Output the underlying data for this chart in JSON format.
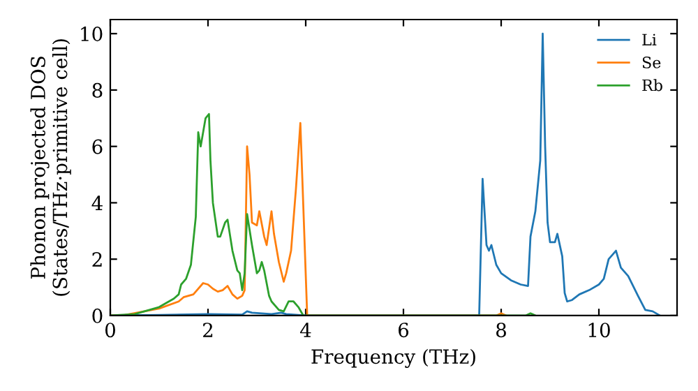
{
  "chart_data": {
    "type": "line",
    "xlabel": "Frequency (THz)",
    "ylabel": "Phonon projected DOS\n(States/THz·primitive cell)",
    "xlim": [
      0,
      11.6
    ],
    "ylim": [
      0,
      10.5
    ],
    "xticks": [
      0,
      2,
      4,
      6,
      8,
      10
    ],
    "yticks": [
      0,
      2,
      4,
      6,
      8,
      10
    ],
    "grid": false,
    "legend": "top right",
    "marker": "none",
    "line_style": "solid",
    "series": [
      {
        "name": "Li",
        "color": "#1f77b4",
        "x": [
          0,
          1.0,
          2.0,
          2.7,
          2.8,
          2.9,
          3.3,
          3.5,
          3.6,
          4.0,
          7.55,
          7.62,
          7.7,
          7.75,
          7.8,
          7.9,
          8.0,
          8.2,
          8.4,
          8.55,
          8.6,
          8.7,
          8.8,
          8.85,
          8.9,
          8.95,
          9.0,
          9.1,
          9.15,
          9.25,
          9.3,
          9.35,
          9.45,
          9.6,
          9.8,
          10.0,
          10.1,
          10.2,
          10.35,
          10.45,
          10.6,
          10.8,
          10.95,
          11.1,
          11.25
        ],
        "values": [
          0,
          0.02,
          0.05,
          0.03,
          0.15,
          0.1,
          0.05,
          0.1,
          0.05,
          0,
          0,
          4.85,
          2.5,
          2.3,
          2.5,
          1.8,
          1.5,
          1.25,
          1.1,
          1.05,
          2.8,
          3.7,
          5.5,
          10.0,
          6.0,
          3.3,
          2.6,
          2.6,
          2.9,
          2.1,
          0.8,
          0.5,
          0.55,
          0.75,
          0.9,
          1.1,
          1.3,
          2.0,
          2.3,
          1.7,
          1.4,
          0.7,
          0.2,
          0.15,
          0
        ]
      },
      {
        "name": "Se",
        "color": "#ff7f0e",
        "x": [
          0,
          0.3,
          1.0,
          1.4,
          1.5,
          1.7,
          1.9,
          2.0,
          2.1,
          2.2,
          2.3,
          2.4,
          2.5,
          2.6,
          2.7,
          2.75,
          2.8,
          2.85,
          2.9,
          3.0,
          3.05,
          3.15,
          3.2,
          3.3,
          3.35,
          3.45,
          3.55,
          3.6,
          3.7,
          3.75,
          3.8,
          3.89,
          4.03,
          7.9,
          8.0,
          8.1
        ],
        "values": [
          0,
          0.02,
          0.25,
          0.5,
          0.65,
          0.75,
          1.15,
          1.1,
          0.95,
          0.85,
          0.9,
          1.05,
          0.75,
          0.6,
          0.7,
          0.9,
          6.0,
          5.0,
          3.3,
          3.2,
          3.7,
          2.8,
          2.5,
          3.7,
          2.9,
          1.9,
          1.2,
          1.5,
          2.3,
          3.4,
          4.5,
          6.83,
          0,
          0,
          0.08,
          0
        ]
      },
      {
        "name": "Rb",
        "color": "#2ca02c",
        "x": [
          0,
          0.5,
          1.0,
          1.3,
          1.4,
          1.45,
          1.55,
          1.65,
          1.75,
          1.8,
          1.85,
          1.9,
          1.95,
          2.02,
          2.05,
          2.1,
          2.2,
          2.25,
          2.35,
          2.4,
          2.5,
          2.6,
          2.65,
          2.7,
          2.75,
          2.8,
          2.9,
          3.0,
          3.05,
          3.1,
          3.15,
          3.25,
          3.3,
          3.45,
          3.55,
          3.65,
          3.75,
          3.85,
          3.95,
          4.0,
          8.5,
          8.6,
          8.7
        ],
        "values": [
          0,
          0.05,
          0.3,
          0.6,
          0.75,
          1.1,
          1.3,
          1.8,
          3.5,
          6.5,
          6.0,
          6.5,
          7.0,
          7.15,
          5.5,
          4.0,
          2.8,
          2.8,
          3.3,
          3.4,
          2.3,
          1.6,
          1.5,
          0.9,
          1.5,
          3.6,
          2.5,
          1.5,
          1.6,
          1.9,
          1.6,
          0.7,
          0.5,
          0.2,
          0.15,
          0.5,
          0.5,
          0.3,
          0,
          0,
          0,
          0.08,
          0
        ]
      }
    ]
  }
}
